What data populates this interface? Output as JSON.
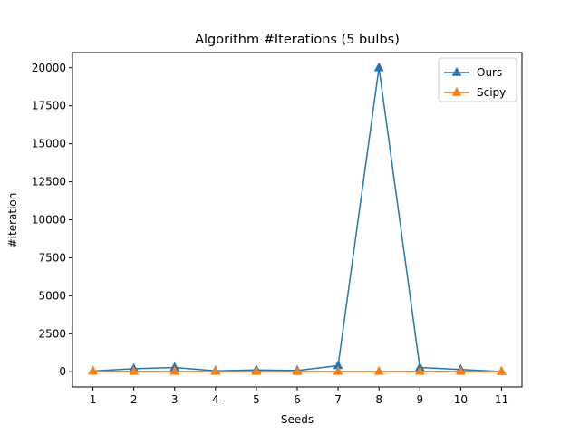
{
  "chart_data": {
    "type": "line",
    "title": "Algorithm #Iterations (5 bulbs)",
    "xlabel": "Seeds",
    "ylabel": "#iteration",
    "x": [
      1,
      2,
      3,
      4,
      5,
      6,
      7,
      8,
      9,
      10,
      11
    ],
    "xlim": [
      0.5,
      11.5
    ],
    "ylim": [
      -1000,
      21000
    ],
    "yticks": [
      0,
      2500,
      5000,
      7500,
      10000,
      12500,
      15000,
      17500,
      20000
    ],
    "xticks": [
      1,
      2,
      3,
      4,
      5,
      6,
      7,
      8,
      9,
      10,
      11
    ],
    "grid": false,
    "legend_position": "top-right",
    "series": [
      {
        "name": "Ours",
        "color": "#1f77b4",
        "marker": "triangle-up",
        "values": [
          50,
          200,
          280,
          60,
          120,
          80,
          400,
          20000,
          280,
          150,
          10
        ]
      },
      {
        "name": "Scipy",
        "color": "#ff7f0e",
        "marker": "triangle-up",
        "values": [
          40,
          20,
          20,
          20,
          20,
          20,
          20,
          20,
          30,
          20,
          20
        ]
      }
    ]
  }
}
